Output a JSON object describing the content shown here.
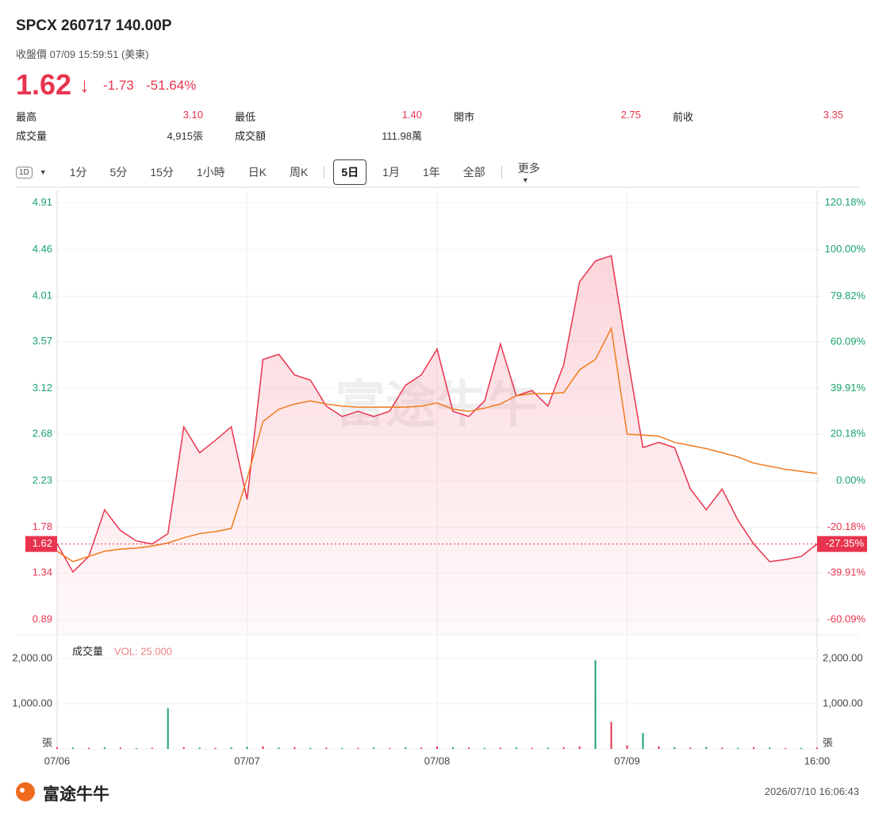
{
  "header": {
    "title": "SPCX 260717 140.00P",
    "subtitle": "收盤價 07/09 15:59:51 (美東)",
    "price": "1.62",
    "change": "-1.73",
    "change_pct": "-51.64%"
  },
  "stats": [
    {
      "label": "最高",
      "value": "3.10"
    },
    {
      "label": "最低",
      "value": "1.40"
    },
    {
      "label": "開市",
      "value": "2.75"
    },
    {
      "label": "前收",
      "value": "3.35"
    },
    {
      "label": "成交量",
      "value": "4,915張"
    },
    {
      "label": "成交額",
      "value": "111.98萬"
    }
  ],
  "tabs": {
    "items": [
      "1D",
      "1分",
      "5分",
      "15分",
      "1小時",
      "日K",
      "周K",
      "5日",
      "1月",
      "1年",
      "全部",
      "更多"
    ],
    "active": "5日"
  },
  "chart_data": {
    "type": "line",
    "price": {
      "color": "#e8344e",
      "values": [
        1.62,
        1.35,
        1.5,
        1.95,
        1.75,
        1.65,
        1.62,
        1.72,
        2.75,
        2.5,
        2.62,
        2.75,
        2.05,
        3.4,
        3.45,
        3.25,
        3.2,
        2.95,
        2.85,
        2.9,
        2.85,
        2.9,
        3.15,
        3.25,
        3.5,
        2.9,
        2.85,
        3.0,
        3.55,
        3.05,
        3.1,
        2.95,
        3.35,
        4.15,
        4.35,
        4.4,
        3.45,
        2.55,
        2.6,
        2.55,
        2.15,
        1.95,
        2.15,
        1.85,
        1.62,
        1.45,
        1.47,
        1.5,
        1.62
      ]
    },
    "average": {
      "color": "#f07a1e",
      "values": [
        1.55,
        1.45,
        1.5,
        1.55,
        1.57,
        1.58,
        1.6,
        1.63,
        1.68,
        1.72,
        1.74,
        1.77,
        2.25,
        2.8,
        2.92,
        2.97,
        3.0,
        2.97,
        2.95,
        2.94,
        2.94,
        2.94,
        2.94,
        2.95,
        2.98,
        2.92,
        2.9,
        2.93,
        2.97,
        3.05,
        3.07,
        3.07,
        3.08,
        3.3,
        3.4,
        3.7,
        2.68,
        2.67,
        2.66,
        2.6,
        2.57,
        2.54,
        2.5,
        2.46,
        2.4,
        2.37,
        2.34,
        2.32,
        2.3
      ]
    },
    "xlim": [
      0,
      48
    ],
    "xticks": [
      {
        "value": 0,
        "label": "07/06"
      },
      {
        "value": 12,
        "label": "07/07"
      },
      {
        "value": 24,
        "label": "07/08"
      },
      {
        "value": 36,
        "label": "07/09"
      },
      {
        "value": 48,
        "label": "16:00"
      }
    ],
    "ylim": [
      0.745,
      5.03
    ],
    "yticks": [
      4.91,
      4.46,
      4.01,
      3.57,
      3.12,
      2.68,
      2.23,
      1.78,
      1.34,
      0.89
    ],
    "y2lim": [
      -66.6,
      125.6
    ],
    "y2ticks": [
      {
        "value": 120.18,
        "label": "120.18%"
      },
      {
        "value": 100,
        "label": "100.00%"
      },
      {
        "value": 79.82,
        "label": "79.82%"
      },
      {
        "value": 60.09,
        "label": "60.09%"
      },
      {
        "value": 39.91,
        "label": "39.91%"
      },
      {
        "value": 20.18,
        "label": "20.18%"
      },
      {
        "value": 0,
        "label": "0.00%"
      },
      {
        "value": -20.18,
        "label": "-20.18%"
      },
      {
        "value": -39.91,
        "label": "-39.91%"
      },
      {
        "value": -60.09,
        "label": "-60.09%"
      }
    ],
    "current": 1.62,
    "current_pct": {
      "value": -27.35,
      "label": "-27.35%"
    },
    "volume": {
      "label": "成交量",
      "legend": "VOL: 25.000",
      "ylim": [
        0,
        2350
      ],
      "yticks": [
        {
          "value": 2000,
          "label": "2,000.00"
        },
        {
          "value": 1000,
          "label": "1,000.00"
        },
        {
          "value": 0,
          "label": "張"
        }
      ],
      "values": [
        40,
        30,
        25,
        35,
        30,
        20,
        25,
        900,
        40,
        30,
        25,
        35,
        50,
        60,
        30,
        40,
        25,
        30,
        20,
        25,
        30,
        20,
        35,
        30,
        60,
        40,
        30,
        25,
        30,
        35,
        25,
        30,
        40,
        60,
        1960,
        600,
        80,
        350,
        60,
        40,
        30,
        45,
        30,
        25,
        40,
        30,
        20,
        25,
        30
      ],
      "colors": [
        "#e8344e",
        "#1aa36b",
        "#e8344e",
        "#1aa36b",
        "#e8344e",
        "#1aa36b",
        "#e8344e",
        "#1aa36b",
        "#e8344e",
        "#1aa36b",
        "#e8344e",
        "#1aa36b",
        "#1aa36b",
        "#e8344e",
        "#1aa36b",
        "#e8344e",
        "#1aa36b",
        "#e8344e",
        "#1aa36b",
        "#e8344e",
        "#1aa36b",
        "#e8344e",
        "#1aa36b",
        "#e8344e",
        "#e8344e",
        "#1aa36b",
        "#e8344e",
        "#1aa36b",
        "#e8344e",
        "#1aa36b",
        "#e8344e",
        "#1aa36b",
        "#e8344e",
        "#e8344e",
        "#1aa36b",
        "#e8344e",
        "#e8344e",
        "#1aa36b",
        "#e8344e",
        "#1aa36b",
        "#e8344e",
        "#1aa36b",
        "#e8344e",
        "#1aa36b",
        "#e8344e",
        "#1aa36b",
        "#e8344e",
        "#1aa36b",
        "#e8344e"
      ]
    },
    "watermark": "富途牛牛"
  },
  "footer": {
    "logo": "富途牛牛",
    "timestamp": "2026/07/10 16:06:43"
  }
}
